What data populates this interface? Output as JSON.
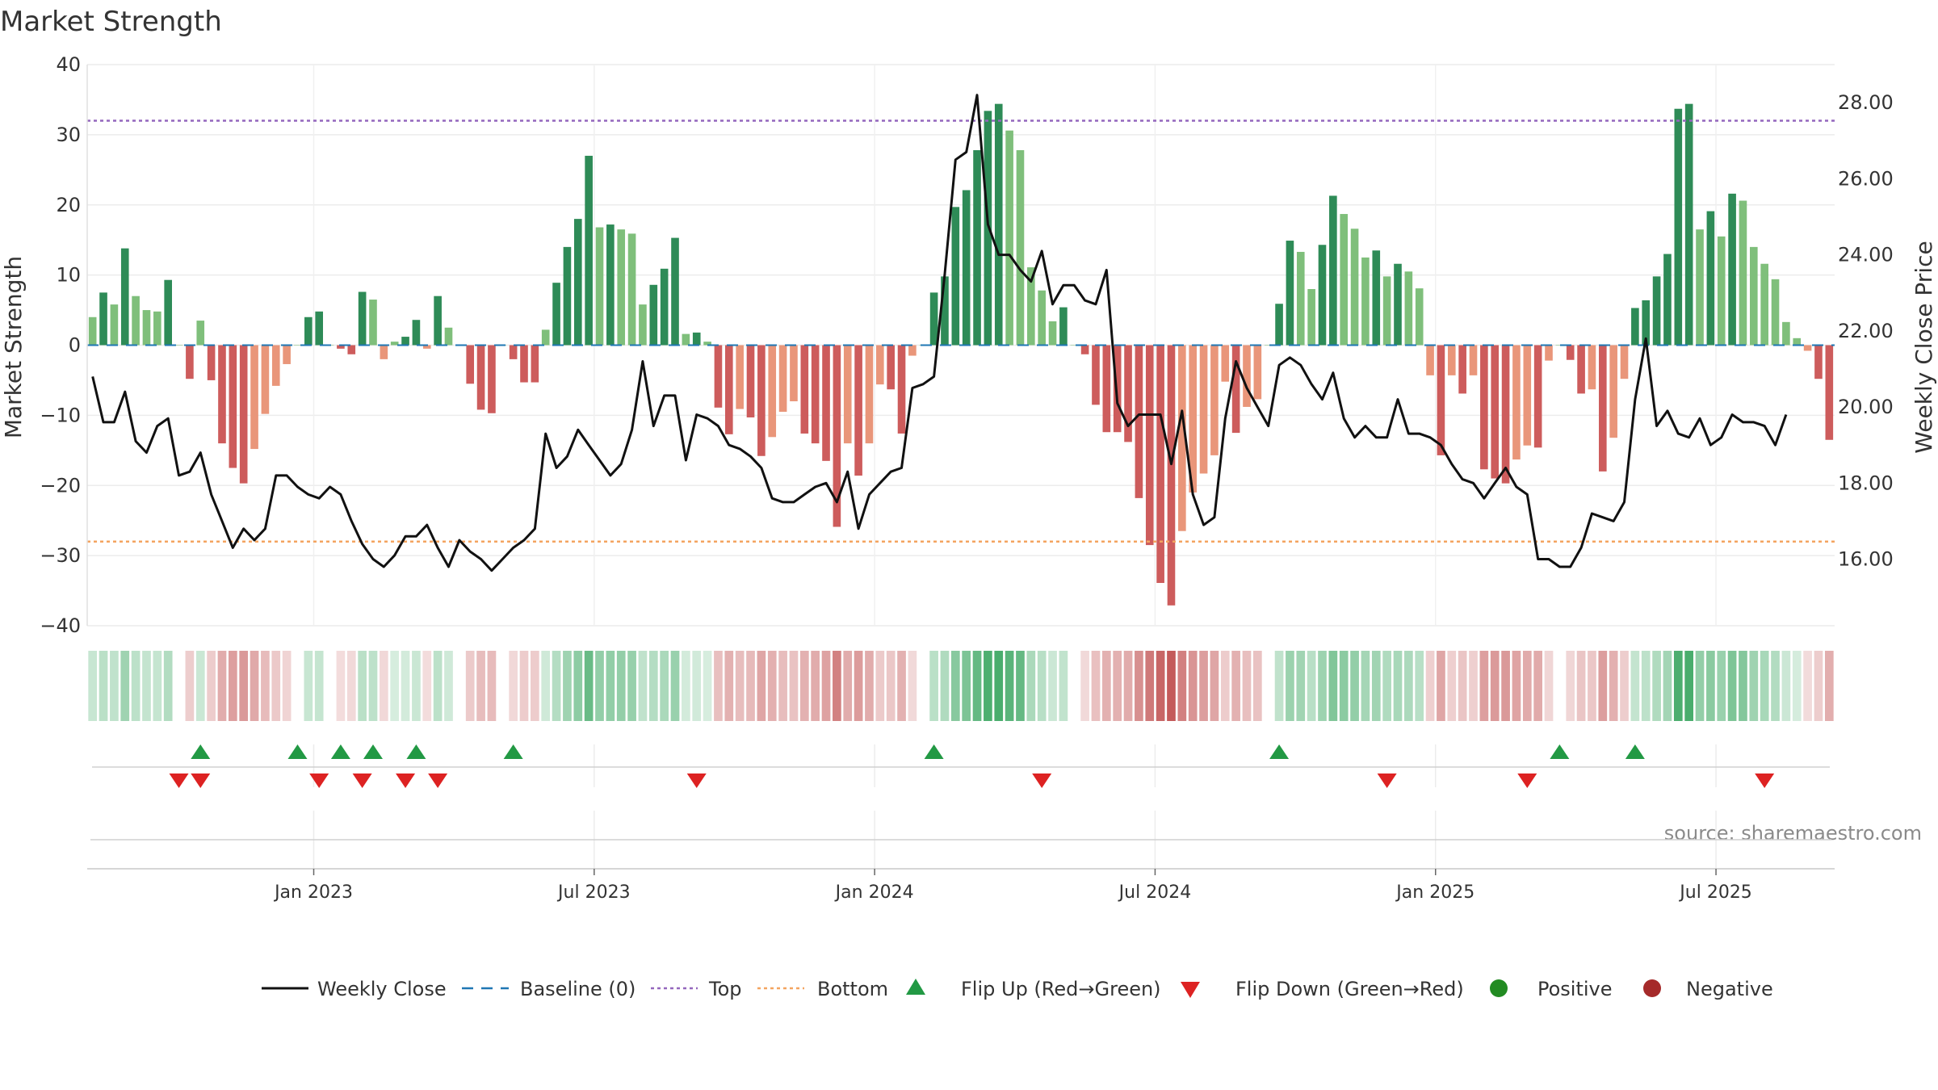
{
  "chart_data": {
    "type": "bar",
    "title": "Market Strength",
    "ylabel_left": "Market Strength",
    "ylabel_right": "Weekly Close Price",
    "source": "source: sharemaestro.com",
    "left_axis": {
      "range": [
        -40,
        40
      ],
      "ticks": [
        40,
        30,
        20,
        10,
        0,
        -10,
        -20,
        -30,
        -40
      ]
    },
    "right_axis": {
      "range": [
        14.25,
        29.0
      ],
      "ticks": [
        28,
        26,
        24,
        22,
        20,
        18,
        16
      ],
      "decimals": 2
    },
    "top_level": 32,
    "bottom_level": -28,
    "x_ticks": [
      {
        "index": 20.5,
        "label": "Jan 2023"
      },
      {
        "index": 46.5,
        "label": "Jul 2023"
      },
      {
        "index": 72.5,
        "label": "Jan 2024"
      },
      {
        "index": 98.5,
        "label": "Jul 2024"
      },
      {
        "index": 124.5,
        "label": "Jan 2025"
      },
      {
        "index": 150.5,
        "label": "Jul 2025"
      }
    ],
    "strength": [
      4,
      7.5,
      5.8,
      13.8,
      7,
      5,
      4.8,
      9.3,
      0,
      -4.8,
      3.5,
      -5,
      -14,
      -17.5,
      -19.7,
      -14.8,
      -9.8,
      -5.8,
      -2.7,
      0,
      4,
      4.8,
      0,
      -0.5,
      -1.3,
      7.6,
      6.5,
      -2,
      0.5,
      1.2,
      3.6,
      -0.5,
      7,
      2.5,
      0,
      -5.5,
      -9.2,
      -9.7,
      0,
      -2,
      -5.3,
      -5.3,
      2.2,
      8.9,
      14,
      18,
      27,
      16.8,
      17.2,
      16.5,
      15.9,
      5.8,
      8.6,
      10.9,
      15.3,
      1.6,
      1.8,
      0.5,
      -8.9,
      -12.7,
      -9.1,
      -10.3,
      -15.8,
      -13.1,
      -9.5,
      -8,
      -12.6,
      -14,
      -16.5,
      -25.9,
      -14,
      -18.6,
      -14,
      -5.6,
      -6.3,
      -12.6,
      -1.5,
      0,
      7.5,
      9.8,
      19.7,
      22.1,
      27.8,
      33.4,
      34.4,
      30.6,
      27.8,
      11.1,
      7.8,
      3.4,
      5.4,
      0,
      -1.3,
      -8.5,
      -12.4,
      -12.4,
      -13.8,
      -21.8,
      -28.5,
      -33.9,
      -37.1,
      -26.5,
      -21,
      -18.3,
      -15.7,
      -5.2,
      -12.5,
      -8.8,
      -7.7,
      0,
      5.9,
      14.9,
      13.3,
      8,
      14.3,
      21.3,
      18.7,
      16.6,
      12.5,
      13.5,
      9.8,
      11.6,
      10.5,
      8.1,
      -4.3,
      -15.7,
      -4.3,
      -6.9,
      -4.3,
      -17.7,
      -19,
      -19.7,
      -16.3,
      -14.3,
      -14.6,
      -2.2,
      0,
      -2.1,
      -6.9,
      -6.3,
      -18,
      -13.2,
      -4.8,
      5.3,
      6.4,
      9.8,
      13,
      33.7,
      34.4,
      16.5,
      19.1,
      15.5,
      21.6,
      20.6,
      14,
      11.6,
      9.4,
      3.3,
      1,
      -0.8,
      -4.8,
      -13.5
    ],
    "close": [
      20.8,
      19.6,
      19.6,
      20.4,
      19.1,
      18.8,
      19.5,
      19.7,
      18.2,
      18.3,
      18.8,
      17.7,
      17,
      16.3,
      16.8,
      16.5,
      16.8,
      18.2,
      18.2,
      17.9,
      17.7,
      17.6,
      17.9,
      17.7,
      17,
      16.4,
      16,
      15.8,
      16.1,
      16.6,
      16.6,
      16.9,
      16.3,
      15.8,
      16.5,
      16.2,
      16,
      15.7,
      16,
      16.3,
      16.5,
      16.8,
      19.3,
      18.4,
      18.7,
      19.4,
      19,
      18.6,
      18.2,
      18.5,
      19.4,
      21.2,
      19.5,
      20.3,
      20.3,
      18.6,
      19.8,
      19.7,
      19.5,
      19,
      18.9,
      18.7,
      18.4,
      17.6,
      17.5,
      17.5,
      17.7,
      17.9,
      18,
      17.5,
      18.3,
      16.8,
      17.7,
      18,
      18.3,
      18.4,
      20.5,
      20.6,
      20.8,
      23.5,
      26.5,
      26.7,
      28.2,
      24.8,
      24,
      24,
      23.6,
      23.3,
      24.1,
      22.7,
      23.2,
      23.2,
      22.8,
      22.7,
      23.6,
      20.1,
      19.5,
      19.8,
      19.8,
      19.8,
      18.5,
      19.9,
      17.7,
      16.9,
      17.1,
      19.7,
      21.2,
      20.5,
      20,
      19.5,
      21.1,
      21.3,
      21.1,
      20.6,
      20.2,
      20.9,
      19.7,
      19.2,
      19.5,
      19.2,
      19.2,
      20.2,
      19.3,
      19.3,
      19.2,
      19,
      18.5,
      18.1,
      18,
      17.6,
      18,
      18.4,
      17.9,
      17.7,
      16,
      16,
      15.8,
      15.8,
      16.3,
      17.2,
      17.1,
      17,
      17.5,
      20.2,
      21.8,
      19.5,
      19.9,
      19.3,
      19.2,
      19.7,
      19,
      19.2,
      19.8,
      19.6,
      19.6,
      19.5,
      19,
      19.8
    ],
    "flips_up": [
      10,
      19,
      23,
      26,
      30,
      39,
      78,
      110,
      136,
      143
    ],
    "flips_down": [
      8,
      10,
      21,
      25,
      29,
      32,
      56,
      88,
      120,
      133,
      155
    ],
    "colors": {
      "pos_strong": "#2e8b57",
      "pos_weak": "#7fbf7b",
      "neg_strong": "#cd5c5c",
      "neg_weak": "#e9967a",
      "price_line": "#111111",
      "baseline": "#1f77b4",
      "top_line": "#9467bd",
      "bottom_line": "#f4a460",
      "flip_up": "#229944",
      "flip_down": "#dd2222",
      "positive_dot": "#228b22",
      "negative_dot": "#a52a2a"
    },
    "legend": [
      {
        "key": "weekly_close",
        "label": "Weekly Close"
      },
      {
        "key": "baseline",
        "label": "Baseline (0)"
      },
      {
        "key": "top",
        "label": "Top"
      },
      {
        "key": "bottom",
        "label": "Bottom"
      },
      {
        "key": "flip_up",
        "label": "Flip Up (Red→Green)"
      },
      {
        "key": "flip_down",
        "label": "Flip Down (Green→Red)"
      },
      {
        "key": "positive",
        "label": "Positive"
      },
      {
        "key": "negative",
        "label": "Negative"
      }
    ]
  }
}
